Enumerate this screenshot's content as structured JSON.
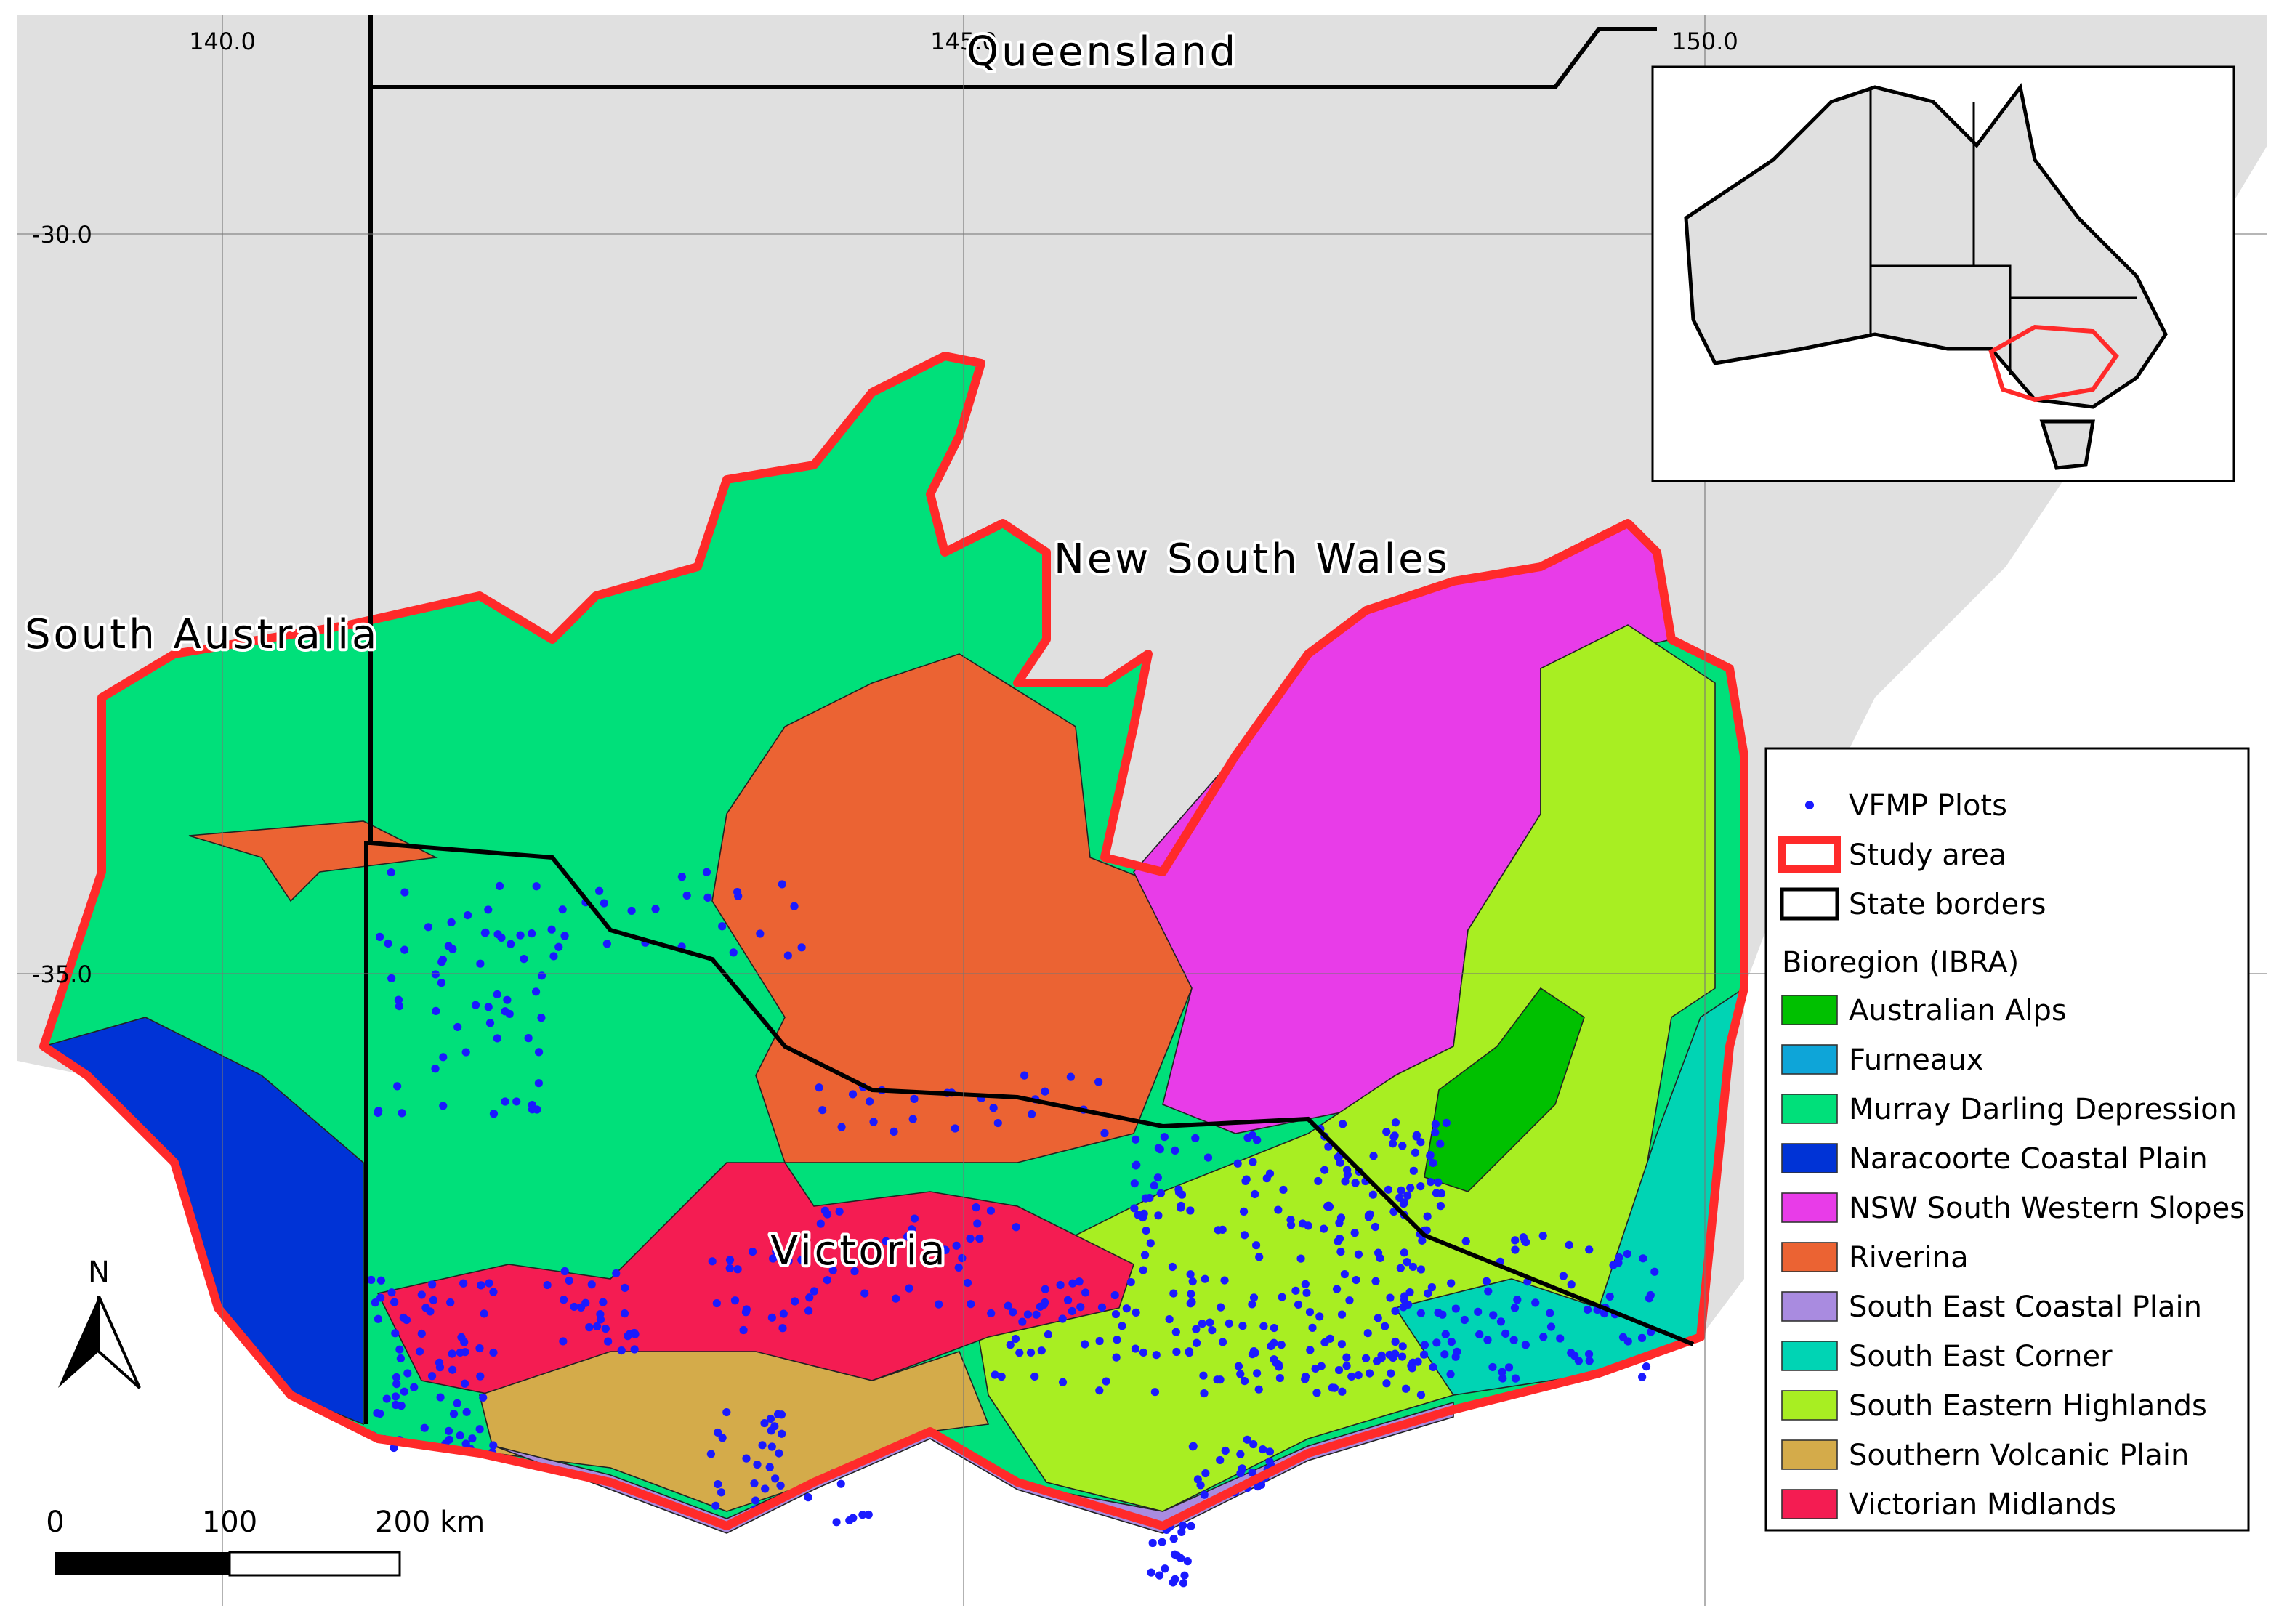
{
  "map": {
    "grid": {
      "lon": [
        {
          "value": 140,
          "label": "140.0"
        },
        {
          "value": 145,
          "label": "145.0"
        },
        {
          "value": 150,
          "label": "150.0"
        }
      ],
      "lat": [
        {
          "value": -30,
          "label": "-30.0"
        },
        {
          "value": -35,
          "label": "-35.0"
        }
      ]
    },
    "places": [
      "Queensland",
      "New South Wales",
      "South Australia",
      "Victoria"
    ],
    "legend": {
      "items": [
        {
          "label": "VFMP Plots",
          "color": "#1a1aff"
        },
        {
          "label": "Study area",
          "color": "#ff2a2a"
        },
        {
          "label": "State borders",
          "color": "#000000"
        }
      ],
      "heading": "Bioregion (IBRA)",
      "bioregions": [
        {
          "label": "Australian Alps",
          "color": "#00c000"
        },
        {
          "label": "Furneaux",
          "color": "#0ea5d8"
        },
        {
          "label": "Murray Darling Depression",
          "color": "#00e07a"
        },
        {
          "label": "Naracoorte Coastal Plain",
          "color": "#0033d6"
        },
        {
          "label": "NSW South Western Slopes",
          "color": "#e83ce8"
        },
        {
          "label": "Riverina",
          "color": "#eb6333"
        },
        {
          "label": "South East Coastal Plain",
          "color": "#a98be0"
        },
        {
          "label": "South East Corner",
          "color": "#00d4b4"
        },
        {
          "label": "South Eastern Highlands",
          "color": "#a8ee22"
        },
        {
          "label": "Southern Volcanic Plain",
          "color": "#d4ab4a"
        },
        {
          "label": "Victorian Midlands",
          "color": "#f41c52"
        }
      ]
    },
    "north": "N",
    "scale_bar": [
      "0",
      "100",
      "200 km"
    ]
  }
}
